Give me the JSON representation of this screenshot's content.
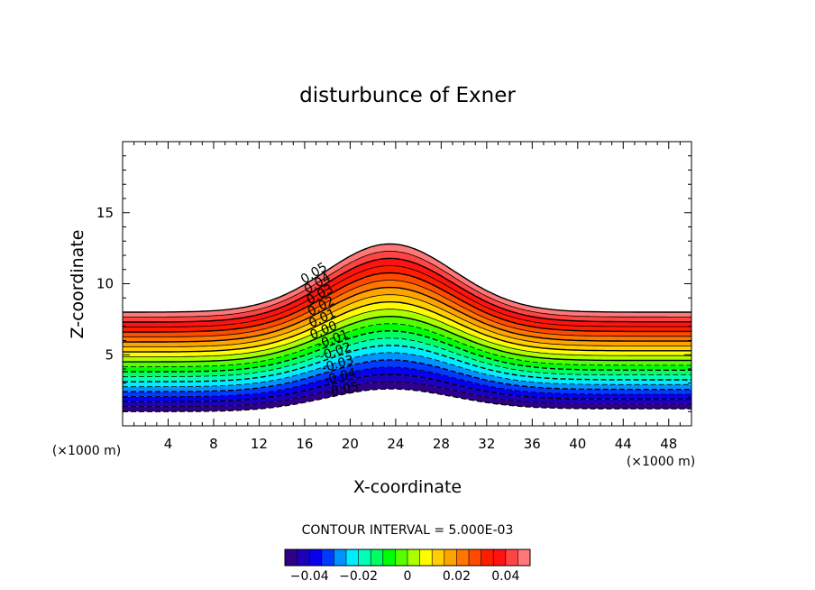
{
  "chart_data": {
    "type": "contour",
    "title": "disturbunce of Exner",
    "xlabel": "X-coordinate",
    "ylabel": "Z-coordinate",
    "x_unit": "(×1000 m)",
    "y_unit": "(×1000 m)",
    "xlim": [
      0,
      50
    ],
    "ylim": [
      0,
      20
    ],
    "x_ticks": [
      4,
      8,
      12,
      16,
      20,
      24,
      28,
      32,
      36,
      40,
      44,
      48
    ],
    "y_ticks": [
      5,
      10,
      15
    ],
    "contour_interval_text": "CONTOUR INTERVAL = 5.000E-03",
    "value_range": [
      -0.05,
      0.05
    ],
    "interval": 0.005,
    "terrain": {
      "base": 1.0,
      "peak_x": 23.5,
      "peak_z": 2.6,
      "half_width": 10,
      "right_base": 1.2
    },
    "top_of_field_z": [
      8.0,
      12.8,
      8.0
    ],
    "contour_labels": [
      "0.05",
      "0.04",
      "0.03",
      "0.02",
      "0.01",
      "0.00",
      "-0.01",
      "-0.02",
      "-0.03",
      "-0.04",
      "-0.05"
    ],
    "colorbar": {
      "min": -0.05,
      "max": 0.05,
      "tick_values": [
        -0.04,
        -0.02,
        0,
        0.02,
        0.04
      ],
      "tick_labels": [
        "−0.04",
        "−0.02",
        "0",
        "0.02",
        "0.04"
      ]
    },
    "negative_contours_dashed": true,
    "colormap": [
      "#3a0070",
      "#0000ff",
      "#00ffff",
      "#00ff00",
      "#ffff00",
      "#ff8000",
      "#ff0000",
      "#ff9090"
    ]
  }
}
